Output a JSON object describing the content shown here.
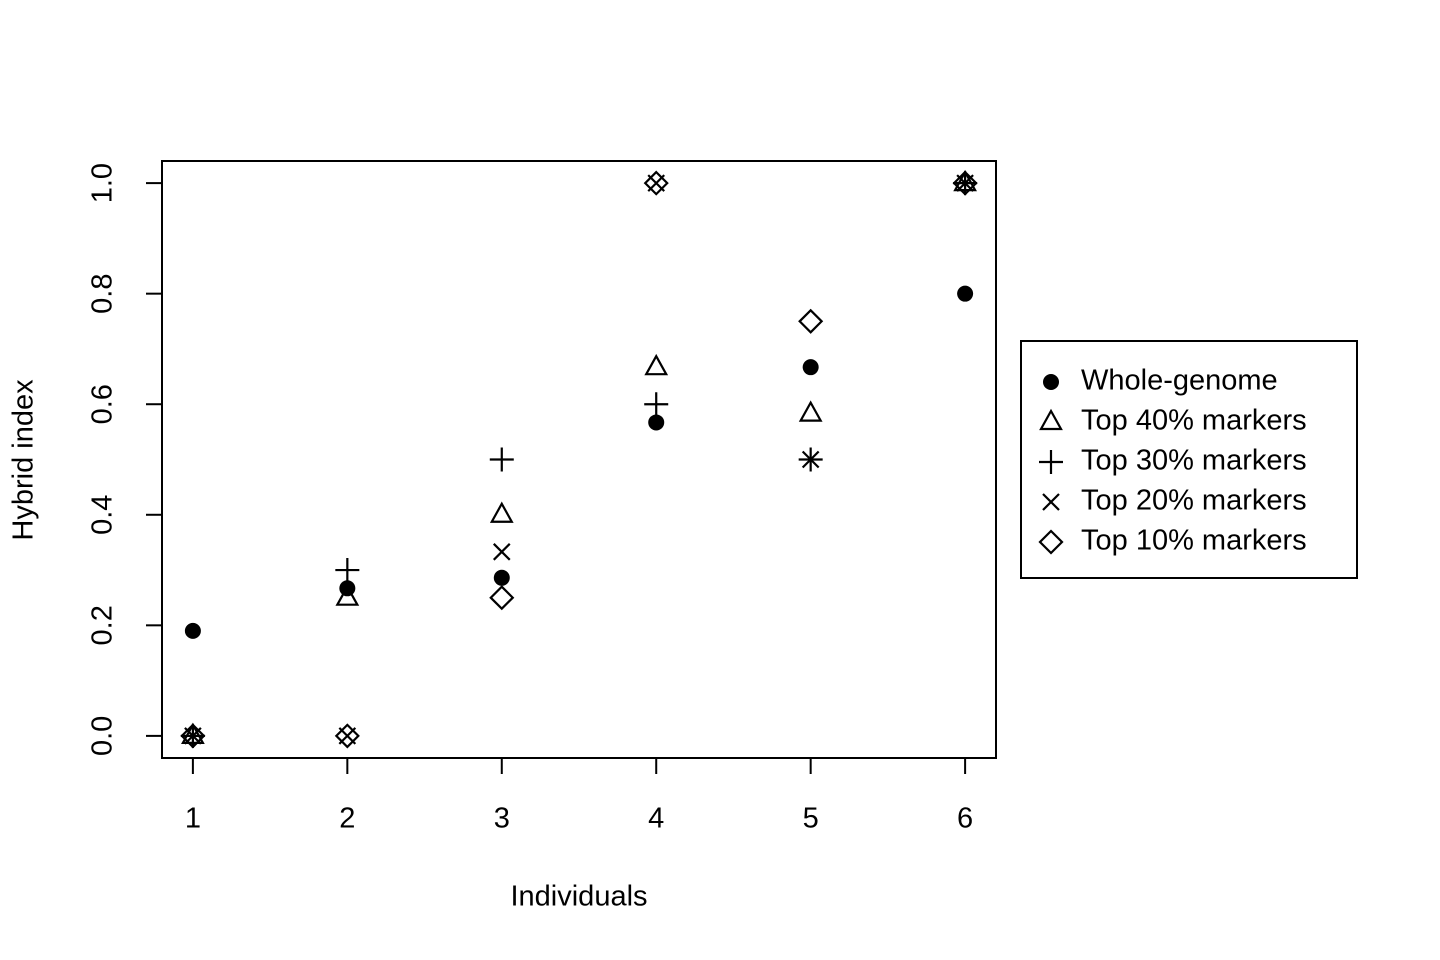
{
  "chart_data": {
    "type": "scatter",
    "x_label": "Individuals",
    "y_label": "Hybrid index",
    "x": [
      1,
      2,
      3,
      4,
      5,
      6
    ],
    "series": [
      {
        "name": "Whole-genome",
        "color": "#000000",
        "marker": "circle",
        "values": [
          0.19,
          0.267,
          0.286,
          0.567,
          0.667,
          0.8
        ]
      },
      {
        "name": "Top 40% markers",
        "color": "#000000",
        "marker": "triangle",
        "values": [
          0,
          0.25,
          0.4,
          0.667,
          0.583,
          1.0
        ]
      },
      {
        "name": "Top 30% markers",
        "color": "#000000",
        "marker": "plus",
        "values": [
          0,
          0.3,
          0.5,
          0.6,
          0.5,
          1.0
        ]
      },
      {
        "name": "Top 20% markers",
        "color": "#000000",
        "marker": "x",
        "values": [
          0,
          0,
          0.333,
          1.0,
          0.5,
          1.0
        ]
      },
      {
        "name": "Top 10% markers",
        "color": "#000000",
        "marker": "diamond",
        "values": [
          0,
          0,
          0.25,
          1.0,
          0.75,
          1.0
        ]
      }
    ],
    "xlim": [
      0.8,
      6.2
    ],
    "ylim": [
      -0.04,
      1.04
    ],
    "xticks": [
      1,
      2,
      3,
      4,
      5,
      6
    ],
    "yticks": [
      {
        "value": 0,
        "label": "0.0"
      },
      0.2,
      0.4,
      0.6,
      0.8,
      {
        "value": 1,
        "label": "1.0"
      }
    ],
    "legend": "right"
  }
}
